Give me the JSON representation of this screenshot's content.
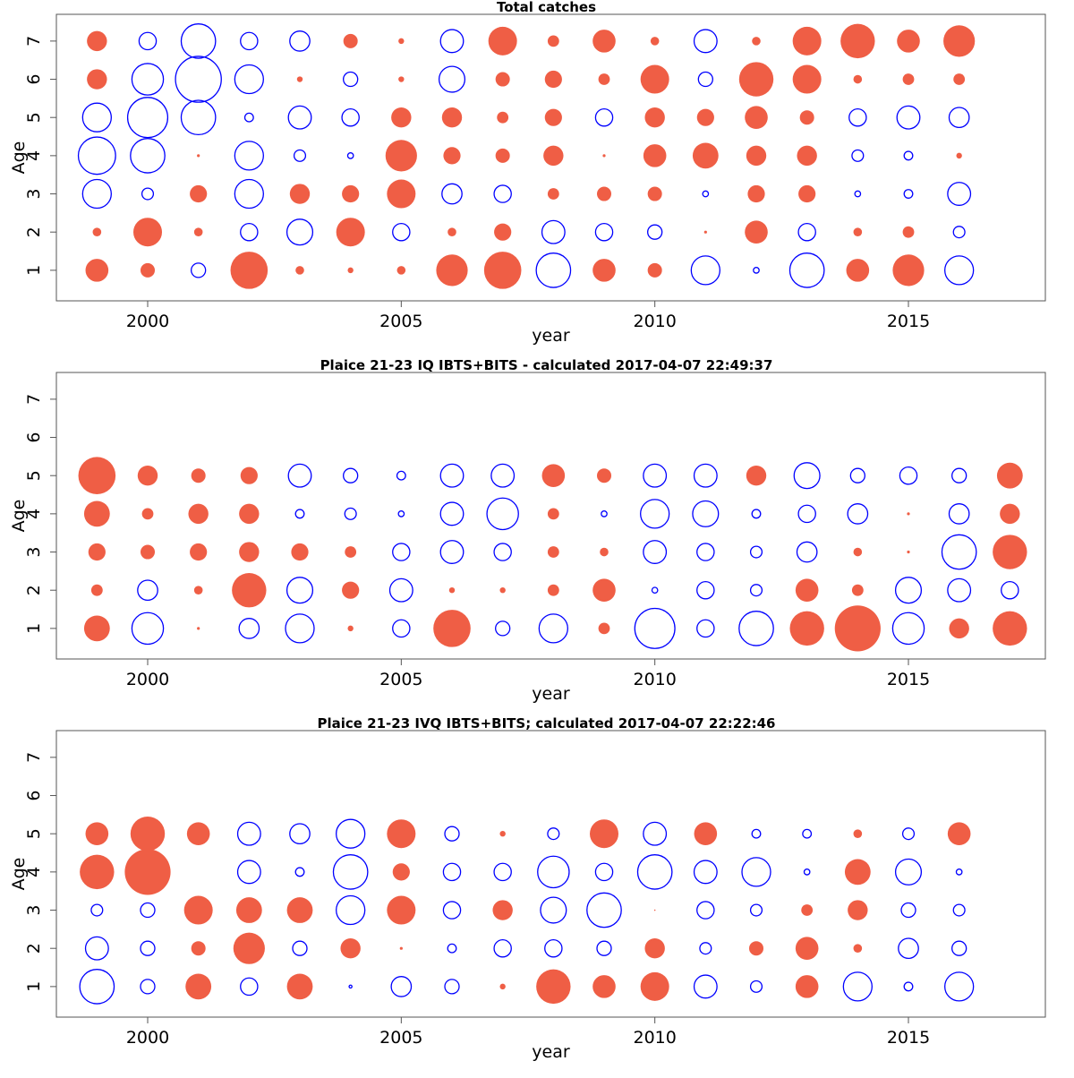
{
  "colors": {
    "positive": "#ef5e45",
    "negative": "#0000ff"
  },
  "chart_data": [
    {
      "type": "scatter",
      "subtype": "bubble-residuals",
      "title": "Total catches",
      "xlabel": "year",
      "ylabel": "Age",
      "xlim": [
        1998.2,
        2017.7
      ],
      "ylim": [
        0.2,
        7.7
      ],
      "xticks": [
        2000,
        2005,
        2010,
        2015
      ],
      "yticks": [
        1,
        2,
        3,
        4,
        5,
        6,
        7
      ],
      "grid": false,
      "legend": "none",
      "encoding": "bubble radius proportional to |value|; positive = filled red, negative = open blue",
      "years": [
        1999,
        2000,
        2001,
        2002,
        2003,
        2004,
        2005,
        2006,
        2007,
        2008,
        2009,
        2010,
        2011,
        2012,
        2013,
        2014,
        2015,
        2016
      ],
      "ages": [
        1,
        2,
        3,
        4,
        5,
        6,
        7
      ],
      "values_by_age": {
        "1": [
          0.8,
          0.5,
          -0.5,
          1.3,
          0.3,
          0.2,
          0.3,
          1.1,
          1.3,
          -1.2,
          0.8,
          0.5,
          -1.0,
          -0.2,
          -1.2,
          0.8,
          1.1,
          -1.0
        ],
        "2": [
          0.3,
          1.0,
          0.3,
          -0.6,
          -0.9,
          1.0,
          -0.6,
          0.3,
          0.6,
          -0.8,
          -0.6,
          -0.5,
          0.1,
          0.8,
          -0.6,
          0.3,
          0.4,
          -0.4
        ],
        "3": [
          -1.0,
          -0.4,
          0.6,
          -1.0,
          0.7,
          0.6,
          1.0,
          -0.7,
          -0.6,
          0.4,
          0.5,
          0.5,
          -0.2,
          0.6,
          0.6,
          -0.2,
          -0.3,
          -0.8
        ],
        "4": [
          -1.3,
          -1.2,
          0.1,
          -1.0,
          -0.4,
          -0.2,
          1.1,
          0.6,
          0.5,
          0.7,
          0.1,
          0.8,
          0.9,
          0.7,
          0.7,
          -0.4,
          -0.3,
          0.2
        ],
        "5": [
          -1.0,
          -1.4,
          -1.2,
          -0.3,
          -0.8,
          -0.6,
          0.7,
          0.7,
          0.4,
          0.6,
          -0.6,
          0.7,
          0.6,
          0.8,
          0.5,
          -0.6,
          -0.8,
          -0.7
        ],
        "6": [
          0.7,
          -1.1,
          -1.6,
          -1.0,
          0.2,
          -0.5,
          0.2,
          -0.9,
          0.5,
          0.6,
          0.4,
          1.0,
          -0.5,
          1.2,
          1.0,
          0.3,
          0.4,
          0.4
        ],
        "7": [
          0.7,
          -0.6,
          -1.2,
          -0.6,
          -0.7,
          0.5,
          0.2,
          -0.8,
          1.0,
          0.4,
          0.8,
          0.3,
          -0.8,
          0.3,
          1.0,
          1.2,
          0.8,
          1.1
        ]
      }
    },
    {
      "type": "scatter",
      "subtype": "bubble-residuals",
      "title": "Plaice 21-23 IQ IBTS+BITS - calculated 2017-04-07 22:49:37",
      "xlabel": "year",
      "ylabel": "Age",
      "xlim": [
        1998.2,
        2017.7
      ],
      "ylim": [
        0.2,
        7.7
      ],
      "xticks": [
        2000,
        2005,
        2010,
        2015
      ],
      "yticks": [
        1,
        2,
        3,
        4,
        5,
        6,
        7
      ],
      "grid": false,
      "legend": "none",
      "encoding": "bubble radius proportional to |value|; positive = filled red, negative = open blue",
      "years": [
        1999,
        2000,
        2001,
        2002,
        2003,
        2004,
        2005,
        2006,
        2007,
        2008,
        2009,
        2010,
        2011,
        2012,
        2013,
        2014,
        2015,
        2016,
        2017
      ],
      "ages": [
        1,
        2,
        3,
        4,
        5
      ],
      "values_by_age": {
        "1": [
          0.9,
          -1.1,
          0.1,
          -0.7,
          -1.0,
          0.2,
          -0.6,
          1.3,
          -0.5,
          -1.0,
          0.4,
          -1.4,
          -0.6,
          -1.2,
          1.2,
          1.6,
          -1.1,
          0.7,
          1.2
        ],
        "2": [
          0.4,
          -0.7,
          0.3,
          1.2,
          -0.9,
          0.6,
          -0.8,
          0.2,
          0.2,
          0.4,
          0.8,
          -0.2,
          -0.6,
          -0.4,
          0.8,
          0.4,
          -0.9,
          -0.8,
          -0.6
        ],
        "3": [
          0.6,
          0.5,
          0.6,
          0.7,
          0.6,
          0.4,
          -0.6,
          -0.8,
          -0.6,
          0.4,
          0.3,
          -0.8,
          -0.6,
          -0.4,
          -0.7,
          0.3,
          0.1,
          -1.2,
          1.2
        ],
        "4": [
          0.9,
          0.4,
          0.7,
          0.7,
          -0.3,
          -0.4,
          -0.2,
          -0.8,
          -1.1,
          0.4,
          -0.2,
          -1.0,
          -0.9,
          -0.3,
          -0.6,
          -0.7,
          0.1,
          -0.7,
          0.7
        ],
        "5": [
          1.3,
          0.7,
          0.5,
          0.6,
          -0.8,
          -0.5,
          -0.3,
          -0.8,
          -0.8,
          0.8,
          0.5,
          -0.8,
          -0.8,
          0.7,
          -0.9,
          -0.5,
          -0.6,
          -0.5,
          0.9
        ]
      }
    },
    {
      "type": "scatter",
      "subtype": "bubble-residuals",
      "title": "Plaice 21-23 IVQ IBTS+BITS; calculated 2017-04-07 22:22:46",
      "xlabel": "year",
      "ylabel": "Age",
      "xlim": [
        1998.2,
        2017.7
      ],
      "ylim": [
        0.2,
        7.7
      ],
      "xticks": [
        2000,
        2005,
        2010,
        2015
      ],
      "yticks": [
        1,
        2,
        3,
        4,
        5,
        6,
        7
      ],
      "grid": false,
      "legend": "none",
      "encoding": "bubble radius proportional to |value|; positive = filled red, negative = open blue; null = no bubble",
      "years": [
        1999,
        2000,
        2001,
        2002,
        2003,
        2004,
        2005,
        2006,
        2007,
        2008,
        2009,
        2010,
        2011,
        2012,
        2013,
        2014,
        2015,
        2016
      ],
      "ages": [
        1,
        2,
        3,
        4,
        5
      ],
      "values_by_age": {
        "1": [
          -1.2,
          -0.5,
          0.9,
          -0.6,
          0.9,
          -0.1,
          -0.7,
          -0.5,
          0.2,
          1.2,
          0.8,
          1.0,
          -0.8,
          -0.4,
          0.8,
          -1.0,
          -0.3,
          -1.0
        ],
        "2": [
          -0.8,
          -0.5,
          0.5,
          1.1,
          -0.5,
          0.7,
          0.1,
          -0.3,
          -0.6,
          -0.6,
          -0.5,
          0.7,
          -0.4,
          0.5,
          0.8,
          0.3,
          -0.7,
          -0.5
        ],
        "3": [
          -0.4,
          -0.5,
          1.0,
          0.9,
          0.9,
          -1.0,
          1.0,
          -0.6,
          0.7,
          -0.9,
          -1.2,
          0.05,
          -0.6,
          -0.4,
          0.4,
          0.7,
          -0.5,
          -0.4
        ],
        "4": [
          1.2,
          1.6,
          null,
          -0.8,
          -0.3,
          -1.2,
          0.6,
          -0.6,
          -0.6,
          -1.1,
          -0.6,
          -1.2,
          -0.8,
          -1.0,
          -0.2,
          0.9,
          -0.9,
          -0.2
        ],
        "5": [
          0.8,
          1.2,
          0.8,
          -0.8,
          -0.7,
          -1.0,
          1.0,
          -0.5,
          0.2,
          -0.4,
          1.0,
          -0.8,
          0.8,
          -0.3,
          -0.3,
          0.3,
          -0.4,
          0.8
        ]
      }
    }
  ]
}
